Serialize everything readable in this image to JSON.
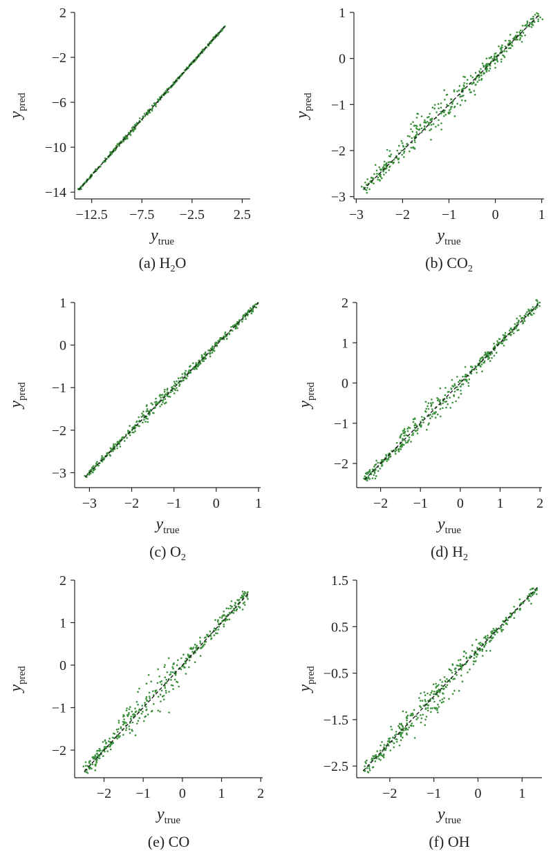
{
  "colors": {
    "points": "#3a8f3a",
    "fit_line": "#1a1a1a",
    "axis": "#222222"
  },
  "chart_data": [
    {
      "type": "scatter",
      "caption_prefix": "(a) H",
      "caption_sub": "2",
      "caption_suffix": "O",
      "xlabel_main": "y",
      "xlabel_sub": "true",
      "ylabel_main": "y",
      "ylabel_sub": "pred",
      "xlim": [
        -14.2,
        3.3
      ],
      "ylim": [
        -14.6,
        2.0
      ],
      "xticks": [
        -12.5,
        -7.5,
        -2.5,
        2.5
      ],
      "xtick_labels": [
        "−12.5",
        "−7.5",
        "−2.5",
        "2.5"
      ],
      "yticks": [
        2,
        -2,
        -6,
        -10,
        -14
      ],
      "ytick_labels": [
        "2",
        "−2",
        "−6",
        "−10",
        "−14"
      ],
      "data_range": [
        -13.8,
        0.8
      ],
      "spread": 0.05,
      "line": {
        "x": [
          -13.8,
          0.8
        ],
        "y": [
          -13.8,
          0.8
        ]
      },
      "grid": false
    },
    {
      "type": "scatter",
      "caption_prefix": "(b) CO",
      "caption_sub": "2",
      "caption_suffix": "",
      "xlabel_main": "y",
      "xlabel_sub": "true",
      "ylabel_main": "y",
      "ylabel_sub": "pred",
      "xlim": [
        -3.05,
        1.05
      ],
      "ylim": [
        -3.05,
        1.0
      ],
      "xticks": [
        -3,
        -2,
        -1,
        0,
        1
      ],
      "xtick_labels": [
        "−3",
        "−2",
        "−1",
        "0",
        "1"
      ],
      "yticks": [
        1,
        0,
        -1,
        -2,
        -3
      ],
      "ytick_labels": [
        "1",
        "0",
        "−1",
        "−2",
        "−3"
      ],
      "data_range": [
        -2.85,
        0.95
      ],
      "spread": 0.08,
      "line": {
        "x": [
          -2.85,
          0.95
        ],
        "y": [
          -2.85,
          0.95
        ]
      },
      "grid": false
    },
    {
      "type": "scatter",
      "caption_prefix": "(c) O",
      "caption_sub": "2",
      "caption_suffix": "",
      "xlabel_main": "y",
      "xlabel_sub": "true",
      "ylabel_main": "y",
      "ylabel_sub": "pred",
      "xlim": [
        -3.35,
        1.05
      ],
      "ylim": [
        -3.35,
        1.0
      ],
      "xticks": [
        -3,
        -2,
        -1,
        0,
        1
      ],
      "xtick_labels": [
        "−3",
        "−2",
        "−1",
        "0",
        "1"
      ],
      "yticks": [
        1,
        0,
        -1,
        -2,
        -3
      ],
      "ytick_labels": [
        "1",
        "0",
        "−1",
        "−2",
        "−3"
      ],
      "data_range": [
        -3.1,
        1.0
      ],
      "spread": 0.04,
      "line": {
        "x": [
          -3.1,
          1.0
        ],
        "y": [
          -3.1,
          1.0
        ]
      },
      "grid": false
    },
    {
      "type": "scatter",
      "caption_prefix": "(d) H",
      "caption_sub": "2",
      "caption_suffix": "",
      "xlabel_main": "y",
      "xlabel_sub": "true",
      "ylabel_main": "y",
      "ylabel_sub": "pred",
      "xlim": [
        -2.6,
        2.05
      ],
      "ylim": [
        -2.6,
        2.0
      ],
      "xticks": [
        -2,
        -1,
        0,
        1,
        2
      ],
      "xtick_labels": [
        "−2",
        "−1",
        "0",
        "1",
        "2"
      ],
      "yticks": [
        2,
        1,
        0,
        -1,
        -2
      ],
      "ytick_labels": [
        "2",
        "1",
        "0",
        "−1",
        "−2"
      ],
      "data_range": [
        -2.4,
        2.0
      ],
      "spread": 0.07,
      "line": {
        "x": [
          -2.4,
          2.0
        ],
        "y": [
          -2.4,
          2.0
        ]
      },
      "grid": false
    },
    {
      "type": "scatter",
      "caption_prefix": "(e) CO",
      "caption_sub": "",
      "caption_suffix": "",
      "xlabel_main": "y",
      "xlabel_sub": "true",
      "ylabel_main": "y",
      "ylabel_sub": "pred",
      "xlim": [
        -2.75,
        2.05
      ],
      "ylim": [
        -2.65,
        2.0
      ],
      "xticks": [
        -2,
        -1,
        0,
        1,
        2
      ],
      "xtick_labels": [
        "−2",
        "−1",
        "0",
        "1",
        "2"
      ],
      "yticks": [
        2,
        1,
        0,
        -1,
        -2
      ],
      "ytick_labels": [
        "2",
        "1",
        "0",
        "−1",
        "−2"
      ],
      "data_range": [
        -2.5,
        1.7
      ],
      "spread": 0.1,
      "line": {
        "x": [
          -2.5,
          1.7
        ],
        "y": [
          -2.5,
          1.7
        ]
      },
      "grid": false
    },
    {
      "type": "scatter",
      "caption_prefix": "(f) OH",
      "caption_sub": "",
      "caption_suffix": "",
      "xlabel_main": "y",
      "xlabel_sub": "true",
      "ylabel_main": "y",
      "ylabel_sub": "pred",
      "xlim": [
        -2.75,
        1.45
      ],
      "ylim": [
        -2.75,
        1.5
      ],
      "xticks": [
        -2,
        -1,
        0,
        1
      ],
      "xtick_labels": [
        "−2",
        "−1",
        "0",
        "1"
      ],
      "yticks": [
        1.5,
        0.5,
        -0.5,
        -1.5,
        -2.5
      ],
      "ytick_labels": [
        "1.5",
        "0.5",
        "−0.5",
        "−1.5",
        "−2.5"
      ],
      "data_range": [
        -2.6,
        1.35
      ],
      "spread": 0.08,
      "line": {
        "x": [
          -2.6,
          1.35
        ],
        "y": [
          -2.6,
          1.35
        ]
      },
      "grid": false
    }
  ]
}
